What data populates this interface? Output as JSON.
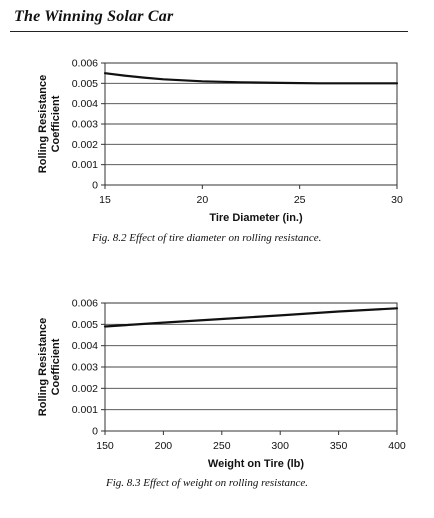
{
  "header": {
    "title": "The Winning Solar Car"
  },
  "chart_data": [
    {
      "type": "line",
      "caption": "Fig. 8.2 Effect of tire diameter on rolling resistance.",
      "title": "",
      "xlabel": "Tire Diameter (in.)",
      "ylabel_lines": [
        "Rolling Resistance",
        "Coefficient"
      ],
      "xlim": [
        15,
        30
      ],
      "ylim": [
        0,
        0.006
      ],
      "x_ticks": [
        15,
        20,
        25,
        30
      ],
      "x_tick_labels": [
        "15",
        "20",
        "25",
        "30"
      ],
      "y_ticks": [
        0,
        0.001,
        0.002,
        0.003,
        0.004,
        0.005,
        0.006
      ],
      "y_tick_labels": [
        "0",
        "0.001",
        "0.002",
        "0.003",
        "0.004",
        "0.005",
        "0.006"
      ],
      "grid": "horizontal",
      "legend": "none",
      "series": [
        {
          "x": [
            15,
            16,
            17,
            18,
            19,
            20,
            22,
            24,
            26,
            28,
            30
          ],
          "y": [
            0.0055,
            0.00538,
            0.00528,
            0.0052,
            0.00515,
            0.0051,
            0.00505,
            0.00502,
            0.005,
            0.005,
            0.005
          ]
        }
      ]
    },
    {
      "type": "line",
      "caption": "Fig. 8.3 Effect of weight on rolling resistance.",
      "title": "",
      "xlabel": "Weight on Tire (lb)",
      "ylabel_lines": [
        "Rolling Resistance",
        "Coefficient"
      ],
      "xlim": [
        150,
        400
      ],
      "ylim": [
        0,
        0.006
      ],
      "x_ticks": [
        150,
        200,
        250,
        300,
        350,
        400
      ],
      "x_tick_labels": [
        "150",
        "200",
        "250",
        "300",
        "350",
        "400"
      ],
      "y_ticks": [
        0,
        0.001,
        0.002,
        0.003,
        0.004,
        0.005,
        0.006
      ],
      "y_tick_labels": [
        "0",
        "0.001",
        "0.002",
        "0.003",
        "0.004",
        "0.005",
        "0.006"
      ],
      "grid": "horizontal",
      "legend": "none",
      "series": [
        {
          "x": [
            150,
            200,
            250,
            300,
            350,
            400
          ],
          "y": [
            0.0049,
            0.00508,
            0.00525,
            0.00542,
            0.0056,
            0.00575
          ]
        }
      ]
    }
  ]
}
